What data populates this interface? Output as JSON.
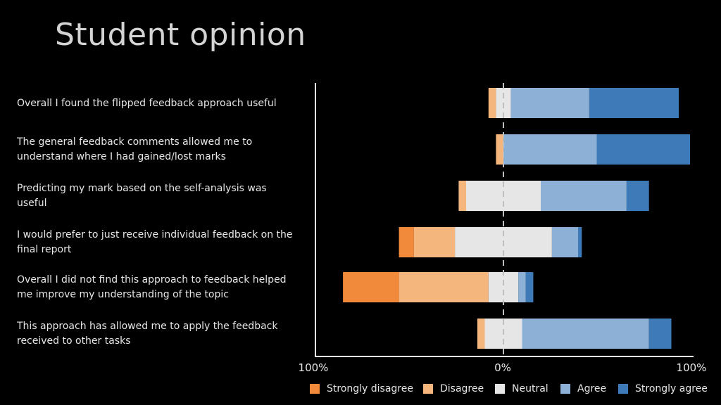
{
  "title": "Student opinion",
  "colors": {
    "strongly_disagree": "#f28a3c",
    "disagree": "#f5b67e",
    "neutral": "#e6e6e6",
    "agree": "#8db1d6",
    "strongly_agree": "#3f7ab8",
    "axis": "#ffffff",
    "center_line": "#bfbfbf"
  },
  "chart_data": {
    "type": "bar",
    "orientation": "horizontal",
    "stacked": "diverging",
    "title": "Student opinion",
    "categories": [
      "Overall I found the flipped feedback approach useful",
      "The general feedback comments allowed me to understand where I had gained/lost marks",
      "Predicting my mark based on the self-analysis was useful",
      "I would prefer to just receive individual feedback on the final report",
      "Overall I did not find this approach to feedback helped me improve my understanding of the topic",
      "This approach has allowed me to apply the feedback received to other tasks"
    ],
    "series": [
      {
        "name": "Strongly disagree",
        "values": [
          0,
          0,
          0,
          4,
          15,
          0
        ]
      },
      {
        "name": "Disagree",
        "values": [
          2,
          2,
          2,
          11,
          24,
          2
        ]
      },
      {
        "name": "Neutral",
        "values": [
          4,
          0,
          20,
          26,
          8,
          10
        ]
      },
      {
        "name": "Agree",
        "values": [
          21,
          25,
          23,
          7,
          2,
          34
        ]
      },
      {
        "name": "Strongly agree",
        "values": [
          24,
          25,
          6,
          1,
          2,
          6
        ]
      }
    ],
    "x_tick_labels": [
      "100%",
      "0%",
      "100%"
    ],
    "xlim": [
      -50,
      50
    ],
    "legend_position": "bottom",
    "grid": false
  }
}
